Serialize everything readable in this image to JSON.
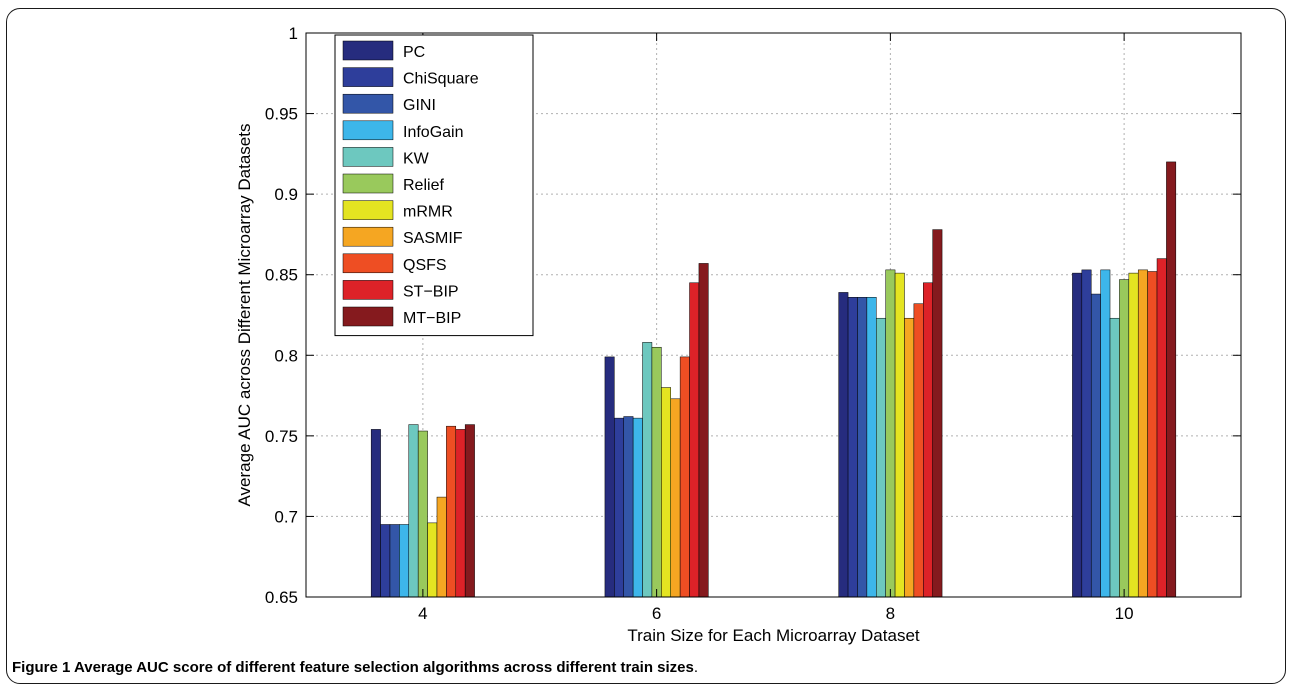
{
  "chart_data": {
    "type": "bar",
    "categories": [
      "4",
      "6",
      "8",
      "10"
    ],
    "xlabel": "Train Size for Each Microarray Dataset",
    "ylabel": "Average AUC across Different Microarray Datasets",
    "ylim": [
      0.65,
      1
    ],
    "yticks": [
      "0.65",
      "0.7",
      "0.75",
      "0.8",
      "0.85",
      "0.9",
      "0.95",
      "1"
    ],
    "grid": true,
    "legend_position": "top-left",
    "series": [
      {
        "name": "PC",
        "color": "#262c7e",
        "values": [
          0.754,
          0.799,
          0.839,
          0.851
        ]
      },
      {
        "name": "ChiSquare",
        "color": "#2e3e9b",
        "values": [
          0.695,
          0.761,
          0.836,
          0.853
        ]
      },
      {
        "name": "GINI",
        "color": "#3356a8",
        "values": [
          0.695,
          0.762,
          0.836,
          0.838
        ]
      },
      {
        "name": "InfoGain",
        "color": "#3db6ea",
        "values": [
          0.695,
          0.761,
          0.836,
          0.853
        ]
      },
      {
        "name": "KW",
        "color": "#6dc8bf",
        "values": [
          0.757,
          0.808,
          0.823,
          0.823
        ]
      },
      {
        "name": "Relief",
        "color": "#99c95c",
        "values": [
          0.753,
          0.805,
          0.853,
          0.847
        ]
      },
      {
        "name": "mRMR",
        "color": "#e4e421",
        "values": [
          0.696,
          0.78,
          0.851,
          0.851
        ]
      },
      {
        "name": "SASMIF",
        "color": "#f5a622",
        "values": [
          0.712,
          0.773,
          0.823,
          0.853
        ]
      },
      {
        "name": "QSFS",
        "color": "#ee4e23",
        "values": [
          0.756,
          0.799,
          0.832,
          0.852
        ]
      },
      {
        "name": "ST−BIP",
        "color": "#dd2228",
        "values": [
          0.754,
          0.845,
          0.845,
          0.86
        ]
      },
      {
        "name": "MT−BIP",
        "color": "#851a1e",
        "values": [
          0.757,
          0.857,
          0.878,
          0.92
        ]
      }
    ]
  },
  "caption": {
    "label": "Figure 1",
    "text": " Average AUC score of different feature selection algorithms across different train sizes",
    "end": "."
  }
}
